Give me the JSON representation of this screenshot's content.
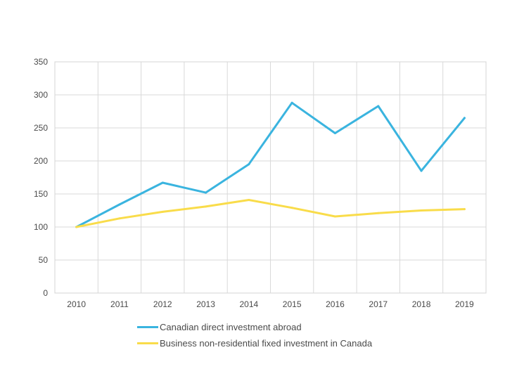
{
  "chart_data": {
    "type": "line",
    "x": [
      "2010",
      "2011",
      "2012",
      "2013",
      "2014",
      "2015",
      "2016",
      "2017",
      "2018",
      "2019"
    ],
    "ylim": [
      0,
      350
    ],
    "yticks": [
      "0",
      "50",
      "100",
      "150",
      "200",
      "250",
      "300",
      "350"
    ],
    "grid": true,
    "legend_position": "bottom",
    "series": [
      {
        "name": "Canadian direct investment abroad",
        "color": "#3ab4df",
        "values": [
          100,
          134,
          167,
          152,
          195,
          288,
          242,
          283,
          185,
          265
        ]
      },
      {
        "name": "Business non-residential fixed investment in Canada",
        "color": "#f9dc4a",
        "values": [
          100,
          113,
          123,
          131,
          141,
          129,
          116,
          121,
          125,
          127
        ]
      }
    ]
  }
}
